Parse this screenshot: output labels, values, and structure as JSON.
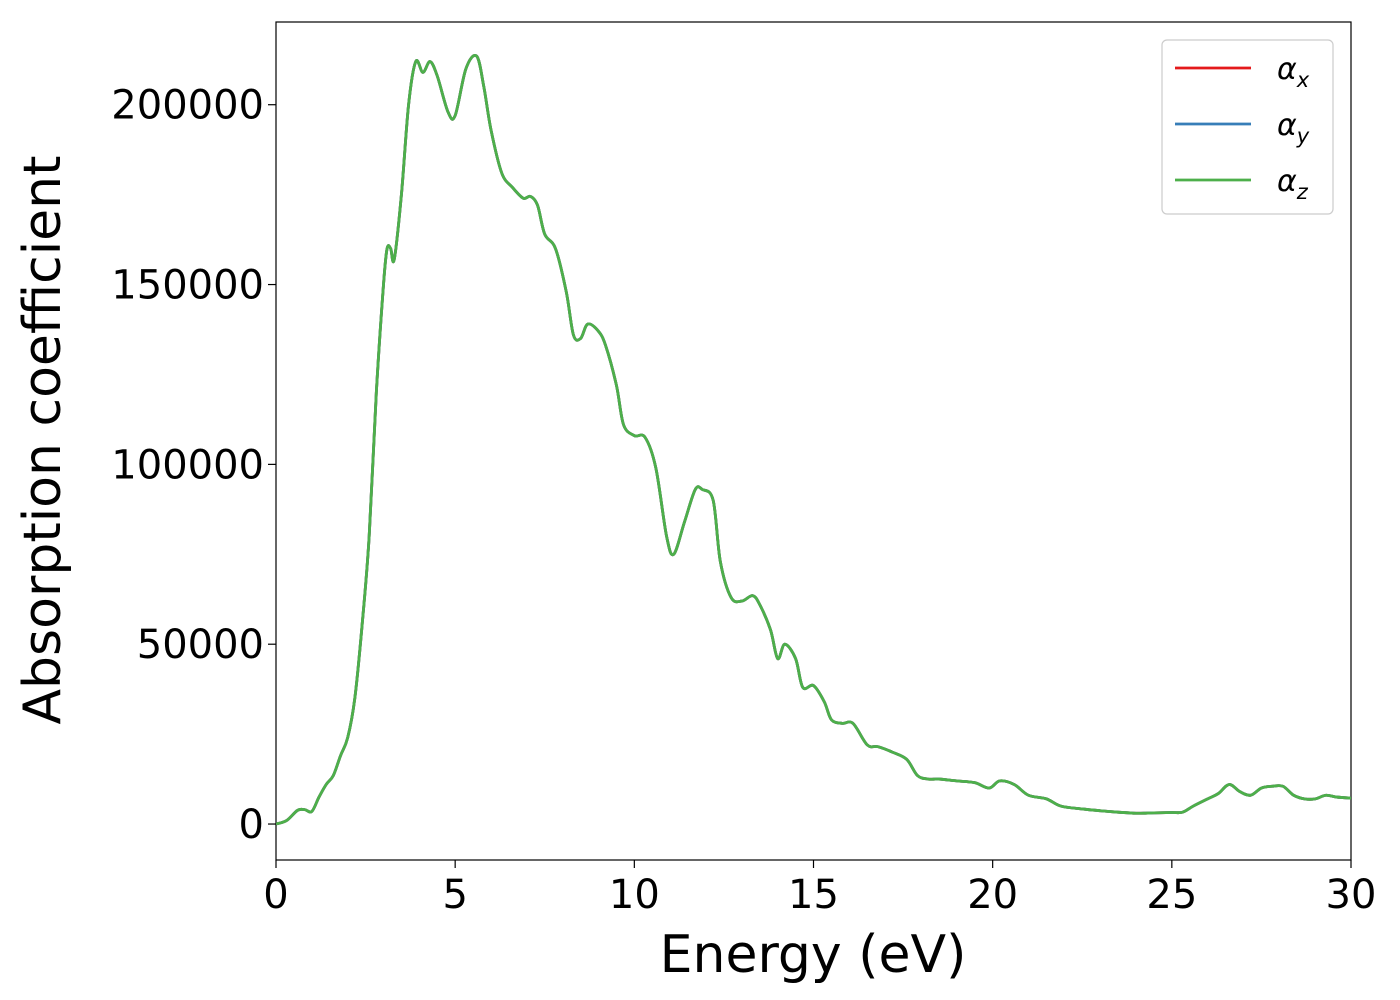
{
  "chart_data": {
    "type": "line",
    "xlabel": "Energy (eV)",
    "ylabel": "Absorption coefficient",
    "xlim": [
      0,
      30
    ],
    "ylim": [
      -10000,
      223000
    ],
    "xticks": [
      0,
      5,
      10,
      15,
      20,
      25,
      30
    ],
    "xtick_labels": [
      "0",
      "5",
      "10",
      "15",
      "20",
      "25",
      "30"
    ],
    "yticks": [
      0,
      50000,
      100000,
      150000,
      200000
    ],
    "ytick_labels": [
      "0",
      "50000",
      "100000",
      "150000",
      "200000"
    ],
    "grid": false,
    "legend_position": "top-right",
    "x": [
      0,
      0.3,
      0.6,
      0.8,
      1.0,
      1.2,
      1.4,
      1.6,
      1.8,
      2.0,
      2.2,
      2.4,
      2.6,
      2.8,
      3.0,
      3.1,
      3.2,
      3.3,
      3.5,
      3.7,
      3.9,
      4.1,
      4.3,
      4.5,
      4.8,
      5.0,
      5.3,
      5.6,
      5.8,
      6.0,
      6.3,
      6.6,
      6.9,
      7.1,
      7.3,
      7.5,
      7.8,
      8.1,
      8.3,
      8.5,
      8.7,
      9.0,
      9.2,
      9.5,
      9.7,
      10.0,
      10.3,
      10.6,
      10.9,
      11.1,
      11.4,
      11.7,
      11.9,
      12.2,
      12.4,
      12.7,
      13.0,
      13.3,
      13.5,
      13.8,
      14.0,
      14.2,
      14.5,
      14.7,
      15.0,
      15.3,
      15.5,
      15.8,
      16.1,
      16.5,
      16.8,
      17.2,
      17.6,
      17.9,
      18.2,
      18.5,
      19.0,
      19.5,
      19.9,
      20.2,
      20.6,
      21.0,
      21.5,
      21.9,
      22.5,
      23.0,
      23.5,
      24.0,
      24.5,
      25.0,
      25.3,
      25.6,
      26.0,
      26.3,
      26.6,
      26.9,
      27.2,
      27.5,
      27.8,
      28.1,
      28.4,
      28.7,
      29.0,
      29.3,
      29.6,
      30.0
    ],
    "series": [
      {
        "name": "αx",
        "color": "#e41a1c",
        "y": [
          0,
          1000,
          3800,
          4000,
          3500,
          7500,
          11000,
          13500,
          19000,
          24000,
          35000,
          55000,
          80000,
          120000,
          150000,
          160000,
          160000,
          157000,
          175000,
          200000,
          212000,
          209000,
          212000,
          208000,
          198000,
          197000,
          210000,
          213500,
          205000,
          193000,
          181000,
          177000,
          174000,
          174500,
          172000,
          164000,
          160000,
          148000,
          136000,
          135000,
          139000,
          137000,
          133000,
          122000,
          111000,
          108000,
          107500,
          99000,
          80000,
          75000,
          84000,
          93000,
          93000,
          90000,
          73000,
          63000,
          62000,
          63500,
          61000,
          54000,
          46000,
          50000,
          46000,
          38000,
          38500,
          34000,
          29000,
          28000,
          28000,
          22000,
          21500,
          20000,
          18000,
          13500,
          12500,
          12500,
          12000,
          11500,
          10000,
          12000,
          11000,
          8000,
          7000,
          5000,
          4200,
          3700,
          3300,
          3000,
          3100,
          3200,
          3300,
          5000,
          7000,
          8500,
          11000,
          9000,
          8000,
          10000,
          10500,
          10500,
          8000,
          7000,
          7000,
          8000,
          7500,
          7200
        ]
      },
      {
        "name": "αy",
        "color": "#377eb8",
        "y": [
          0,
          1000,
          3800,
          4000,
          3500,
          7500,
          11000,
          13500,
          19000,
          24000,
          35000,
          55000,
          80000,
          120000,
          150000,
          160000,
          160000,
          157000,
          175000,
          200000,
          212000,
          209000,
          212000,
          208000,
          198000,
          197000,
          210000,
          213500,
          205000,
          193000,
          181000,
          177000,
          174000,
          174500,
          172000,
          164000,
          160000,
          148000,
          136000,
          135000,
          139000,
          137000,
          133000,
          122000,
          111000,
          108000,
          107500,
          99000,
          80000,
          75000,
          84000,
          93000,
          93000,
          90000,
          73000,
          63000,
          62000,
          63500,
          61000,
          54000,
          46000,
          50000,
          46000,
          38000,
          38500,
          34000,
          29000,
          28000,
          28000,
          22000,
          21500,
          20000,
          18000,
          13500,
          12500,
          12500,
          12000,
          11500,
          10000,
          12000,
          11000,
          8000,
          7000,
          5000,
          4200,
          3700,
          3300,
          3000,
          3100,
          3200,
          3300,
          5000,
          7000,
          8500,
          11000,
          9000,
          8000,
          10000,
          10500,
          10500,
          8000,
          7000,
          7000,
          8000,
          7500,
          7200
        ]
      },
      {
        "name": "αz",
        "color": "#4daf4a",
        "y": [
          0,
          1000,
          3800,
          4000,
          3500,
          7500,
          11000,
          13500,
          19000,
          24000,
          35000,
          55000,
          80000,
          120000,
          150000,
          160000,
          160000,
          157000,
          175000,
          200000,
          212000,
          209000,
          212000,
          208000,
          198000,
          197000,
          210000,
          213500,
          205000,
          193000,
          181000,
          177000,
          174000,
          174500,
          172000,
          164000,
          160000,
          148000,
          136000,
          135000,
          139000,
          137000,
          133000,
          122000,
          111000,
          108000,
          107500,
          99000,
          80000,
          75000,
          84000,
          93000,
          93000,
          90000,
          73000,
          63000,
          62000,
          63500,
          61000,
          54000,
          46000,
          50000,
          46000,
          38000,
          38500,
          34000,
          29000,
          28000,
          28000,
          22000,
          21500,
          20000,
          18000,
          13500,
          12500,
          12500,
          12000,
          11500,
          10000,
          12000,
          11000,
          8000,
          7000,
          5000,
          4200,
          3700,
          3300,
          3000,
          3100,
          3200,
          3300,
          5000,
          7000,
          8500,
          11000,
          9000,
          8000,
          10000,
          10500,
          10500,
          8000,
          7000,
          7000,
          8000,
          7500,
          7200
        ]
      }
    ],
    "legend": [
      {
        "symbol": "α",
        "subscript": "x",
        "color": "#e41a1c"
      },
      {
        "symbol": "α",
        "subscript": "y",
        "color": "#377eb8"
      },
      {
        "symbol": "α",
        "subscript": "z",
        "color": "#4daf4a"
      }
    ]
  }
}
